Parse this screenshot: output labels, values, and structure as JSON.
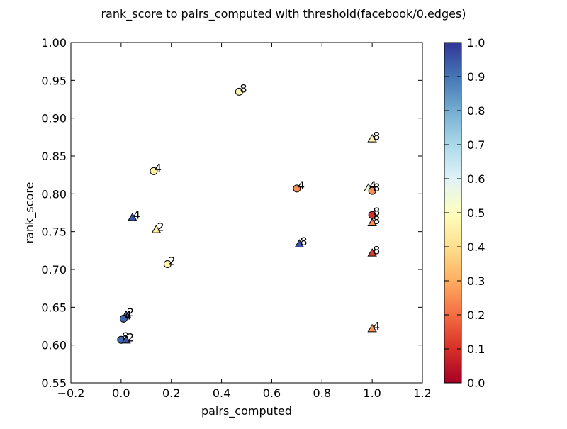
{
  "chart_data": {
    "type": "scatter",
    "title": "rank_score to pairs_computed with threshold(facebook/0.edges)",
    "xlabel": "pairs_computed",
    "ylabel": "rank_score",
    "xlim": [
      -0.2,
      1.2
    ],
    "ylim": [
      0.55,
      1.0
    ],
    "xticks": [
      -0.2,
      0.0,
      0.2,
      0.4,
      0.6,
      0.8,
      1.0,
      1.2
    ],
    "xtick_labels": [
      "−0.2",
      "0.0",
      "0.2",
      "0.4",
      "0.6",
      "0.8",
      "1.0",
      "1.2"
    ],
    "yticks": [
      0.55,
      0.6,
      0.65,
      0.7,
      0.75,
      0.8,
      0.85,
      0.9,
      0.95,
      1.0
    ],
    "ytick_labels": [
      "0.55",
      "0.60",
      "0.65",
      "0.70",
      "0.75",
      "0.80",
      "0.85",
      "0.90",
      "0.95",
      "1.00"
    ],
    "grid": false,
    "colormap": "RdYlBu",
    "colorbar": {
      "range": [
        0.0,
        1.0
      ],
      "ticks": [
        0.0,
        0.1,
        0.2,
        0.3,
        0.4,
        0.5,
        0.6,
        0.7,
        0.8,
        0.9,
        1.0
      ],
      "tick_labels": [
        "0.0",
        "0.1",
        "0.2",
        "0.3",
        "0.4",
        "0.5",
        "0.6",
        "0.7",
        "0.8",
        "0.9",
        "1.0"
      ]
    },
    "points": [
      {
        "x": 0.47,
        "y": 0.935,
        "c": 0.47,
        "marker": "circle",
        "label": "8"
      },
      {
        "x": 1.0,
        "y": 0.872,
        "c": 0.45,
        "marker": "triangle",
        "label": "8"
      },
      {
        "x": 0.13,
        "y": 0.83,
        "c": 0.45,
        "marker": "circle",
        "label": "4"
      },
      {
        "x": 0.7,
        "y": 0.807,
        "c": 0.25,
        "marker": "circle",
        "label": "4"
      },
      {
        "x": 0.985,
        "y": 0.807,
        "c": 0.55,
        "marker": "triangle",
        "label": "4"
      },
      {
        "x": 1.0,
        "y": 0.804,
        "c": 0.25,
        "marker": "circle",
        "label": "8"
      },
      {
        "x": 1.0,
        "y": 0.772,
        "c": 0.1,
        "marker": "circle",
        "label": "8"
      },
      {
        "x": 0.045,
        "y": 0.768,
        "c": 0.95,
        "marker": "triangle",
        "label": "4"
      },
      {
        "x": 1.0,
        "y": 0.761,
        "c": 0.25,
        "marker": "triangle",
        "label": "8"
      },
      {
        "x": 0.14,
        "y": 0.752,
        "c": 0.45,
        "marker": "triangle",
        "label": "2"
      },
      {
        "x": 0.71,
        "y": 0.733,
        "c": 0.95,
        "marker": "triangle",
        "label": "8"
      },
      {
        "x": 1.0,
        "y": 0.721,
        "c": 0.12,
        "marker": "triangle",
        "label": "8"
      },
      {
        "x": 0.185,
        "y": 0.707,
        "c": 0.47,
        "marker": "circle",
        "label": "2"
      },
      {
        "x": 0.02,
        "y": 0.639,
        "c": 0.92,
        "marker": "triangle",
        "label": "2"
      },
      {
        "x": 0.01,
        "y": 0.635,
        "c": 0.92,
        "marker": "circle",
        "label": "4"
      },
      {
        "x": 1.0,
        "y": 0.621,
        "c": 0.25,
        "marker": "triangle",
        "label": "4"
      },
      {
        "x": 0.0,
        "y": 0.607,
        "c": 0.92,
        "marker": "circle",
        "label": "8"
      },
      {
        "x": 0.02,
        "y": 0.606,
        "c": 0.95,
        "marker": "triangle",
        "label": "2"
      }
    ]
  }
}
